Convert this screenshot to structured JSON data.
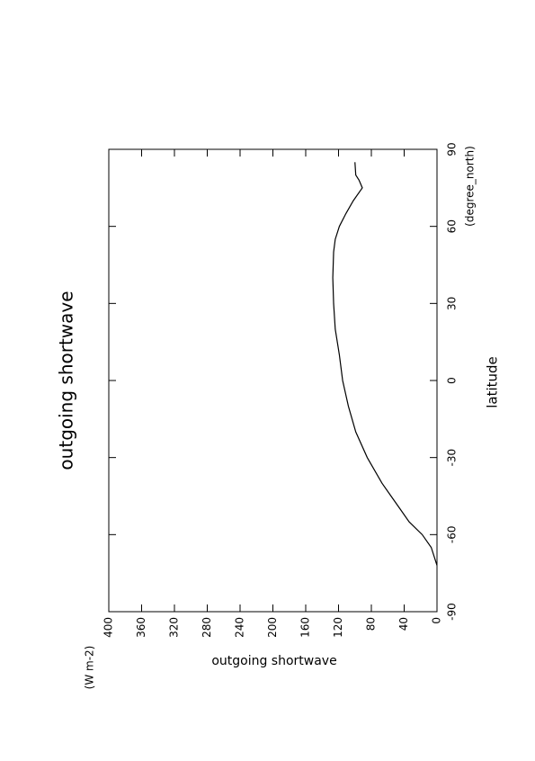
{
  "chart_data": {
    "type": "line",
    "title": "outgoing shortwave",
    "x_label": "latitude",
    "x_unit": "(degree_north)",
    "y_label": "outgoing shortwave",
    "y_unit": "(W m-2)",
    "x": [
      -72,
      -65,
      -60,
      -55,
      -50,
      -45,
      -40,
      -30,
      -20,
      -10,
      0,
      10,
      20,
      30,
      40,
      50,
      55,
      60,
      65,
      70,
      75,
      78,
      80,
      85
    ],
    "values": [
      0,
      7,
      18,
      34,
      45,
      56,
      67,
      85,
      99,
      108,
      115,
      119,
      124,
      126,
      127,
      126,
      124,
      119,
      111,
      102,
      91,
      95,
      99,
      100
    ],
    "color": "#000000",
    "xlim": [
      -90,
      90
    ],
    "xticks": [
      -90,
      -60,
      -30,
      0,
      30,
      60,
      90
    ],
    "ylim": [
      0,
      400
    ],
    "yticks": [
      0,
      40,
      80,
      120,
      160,
      200,
      240,
      280,
      320,
      360,
      400
    ]
  }
}
